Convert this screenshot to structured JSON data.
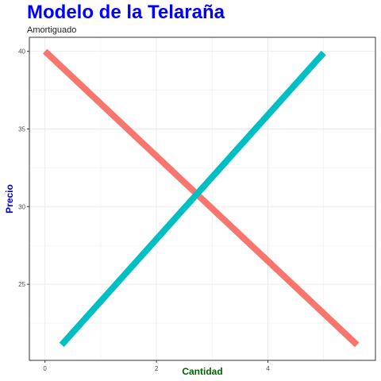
{
  "chart_data": {
    "type": "line",
    "title": "Modelo de la Telaraña",
    "subtitle": "Amortiguado",
    "xlabel": "Cantidad",
    "ylabel": "Precio",
    "xlim": [
      -0.28,
      5.93
    ],
    "ylim": [
      20.1,
      40.9
    ],
    "xticks": [
      0,
      2,
      4
    ],
    "yticks": [
      25,
      30,
      35,
      40
    ],
    "grid": true,
    "legend": "none",
    "series": [
      {
        "color": "#F8766D",
        "points": [
          [
            0,
            40
          ],
          [
            5.6,
            21.1
          ]
        ]
      },
      {
        "color": "#00BFC4",
        "points": [
          [
            0.3,
            21.1
          ],
          [
            5.0,
            39.9
          ]
        ]
      }
    ]
  },
  "colors": {
    "title": "#0000FF",
    "ylabel": "#0000CD",
    "xlabel": "#006400",
    "grid": "#EBEBEB",
    "axis": "#333333"
  }
}
